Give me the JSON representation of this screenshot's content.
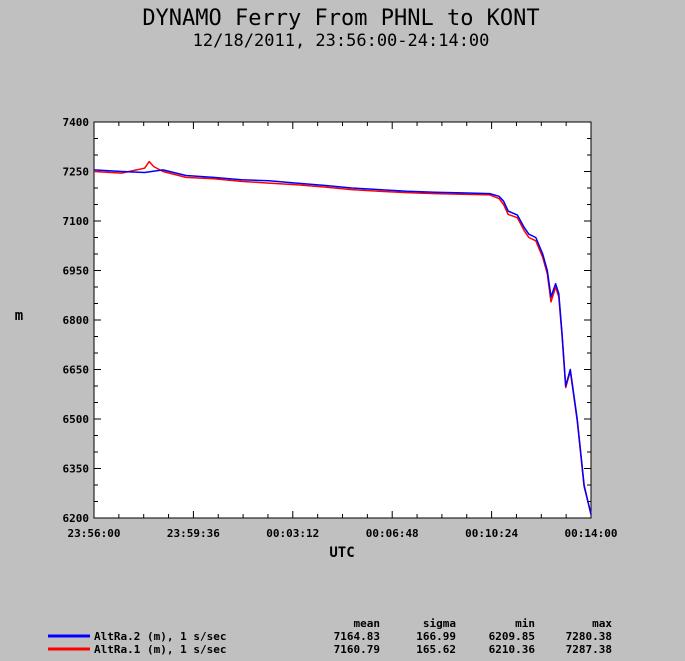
{
  "chart_data": {
    "type": "line",
    "title": "DYNAMO Ferry From PHNL to KONT",
    "subtitle": "12/18/2011, 23:56:00-24:14:00",
    "xlabel": "UTC",
    "ylabel": "m",
    "ylim": [
      6200,
      7400
    ],
    "yticks": [
      "7400",
      "7250",
      "7100",
      "6950",
      "6800",
      "6650",
      "6500",
      "6350",
      "6200"
    ],
    "xlim_seconds_after_2356": [
      0,
      1080
    ],
    "xticks": [
      "23:56:00",
      "23:59:36",
      "00:03:12",
      "00:06:48",
      "00:10:24",
      "00:14:00"
    ],
    "grid": false,
    "legend_placement": "bottom",
    "stats_headers": [
      "mean",
      "sigma",
      "min",
      "max"
    ],
    "series": [
      {
        "name": "AltRa.2 (m), 1 s/sec",
        "color": "#0000ff",
        "mean": "7164.83",
        "sigma": "166.99",
        "min": "6209.85",
        "max": "7280.38",
        "x": [
          0,
          60,
          110,
          150,
          200,
          260,
          320,
          380,
          440,
          500,
          560,
          620,
          680,
          740,
          800,
          860,
          880,
          890,
          900,
          920,
          935,
          945,
          960,
          975,
          985,
          993,
          1003,
          1010,
          1017,
          1025,
          1035,
          1050,
          1065,
          1080
        ],
        "values": [
          7255,
          7250,
          7247,
          7255,
          7238,
          7232,
          7225,
          7222,
          7215,
          7208,
          7200,
          7195,
          7190,
          7187,
          7185,
          7183,
          7175,
          7160,
          7130,
          7118,
          7080,
          7060,
          7050,
          7000,
          6950,
          6870,
          6910,
          6880,
          6760,
          6600,
          6650,
          6500,
          6300,
          6210
        ]
      },
      {
        "name": "AltRa.1 (m), 1 s/sec",
        "color": "#ff0000",
        "mean": "7160.79",
        "sigma": "165.62",
        "min": "6210.36",
        "max": "7287.38",
        "x": [
          0,
          60,
          110,
          120,
          130,
          150,
          200,
          260,
          320,
          380,
          440,
          500,
          560,
          620,
          680,
          740,
          800,
          860,
          880,
          890,
          900,
          920,
          935,
          945,
          960,
          975,
          985,
          993,
          1003,
          1010,
          1017,
          1025,
          1035,
          1050,
          1065,
          1080
        ],
        "values": [
          7250,
          7245,
          7260,
          7280,
          7265,
          7250,
          7232,
          7228,
          7220,
          7215,
          7210,
          7203,
          7195,
          7190,
          7186,
          7183,
          7181,
          7179,
          7168,
          7150,
          7120,
          7110,
          7070,
          7050,
          7040,
          6990,
          6940,
          6855,
          6900,
          6870,
          6755,
          6595,
          6645,
          6495,
          6295,
          6212
        ]
      }
    ]
  }
}
